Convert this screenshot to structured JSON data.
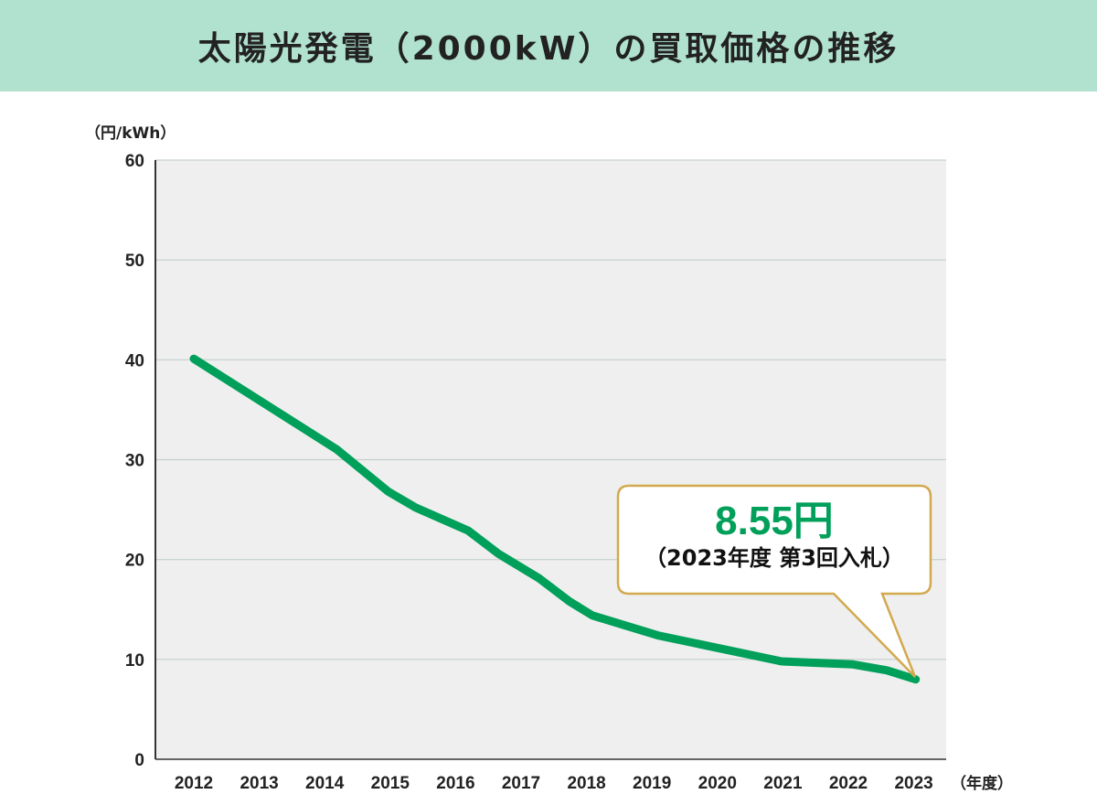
{
  "title": "太陽光発電（2000kW）の買取価格の推移",
  "colors": {
    "title_bg": "#b1e2d0",
    "line": "#00a05a",
    "plot_bg": "#efefef",
    "callout_border": "#d2a94e"
  },
  "chart_data": {
    "type": "line",
    "title": "太陽光発電（2000kW）の買取価格の推移",
    "ylabel": "（円/kWh）",
    "xlabel": "（年度）",
    "ylim": [
      0,
      60
    ],
    "xlim": [
      2011.45,
      2023.5
    ],
    "yticks": [
      "0",
      "10",
      "20",
      "30",
      "40",
      "50",
      "60"
    ],
    "xticks": [
      "2012",
      "2013",
      "2014",
      "2015",
      "2016",
      "2017",
      "2018",
      "2019",
      "2020",
      "2021",
      "2022",
      "2023"
    ],
    "grid": true,
    "series": [
      {
        "x": [
          2012,
          2014.19,
          2014.97,
          2015.39,
          2016.19,
          2016.65,
          2017.28,
          2017.74,
          2018.09,
          2019.09,
          2020.98,
          2022.07,
          2022.59,
          2023.03
        ],
        "y": [
          40.1,
          31.0,
          26.8,
          25.2,
          22.9,
          20.6,
          18.1,
          15.8,
          14.4,
          12.4,
          9.8,
          9.5,
          8.9,
          8.0
        ]
      }
    ],
    "annotation": {
      "value": "8.55円",
      "note": "（2023年度 第3回入札）"
    }
  }
}
